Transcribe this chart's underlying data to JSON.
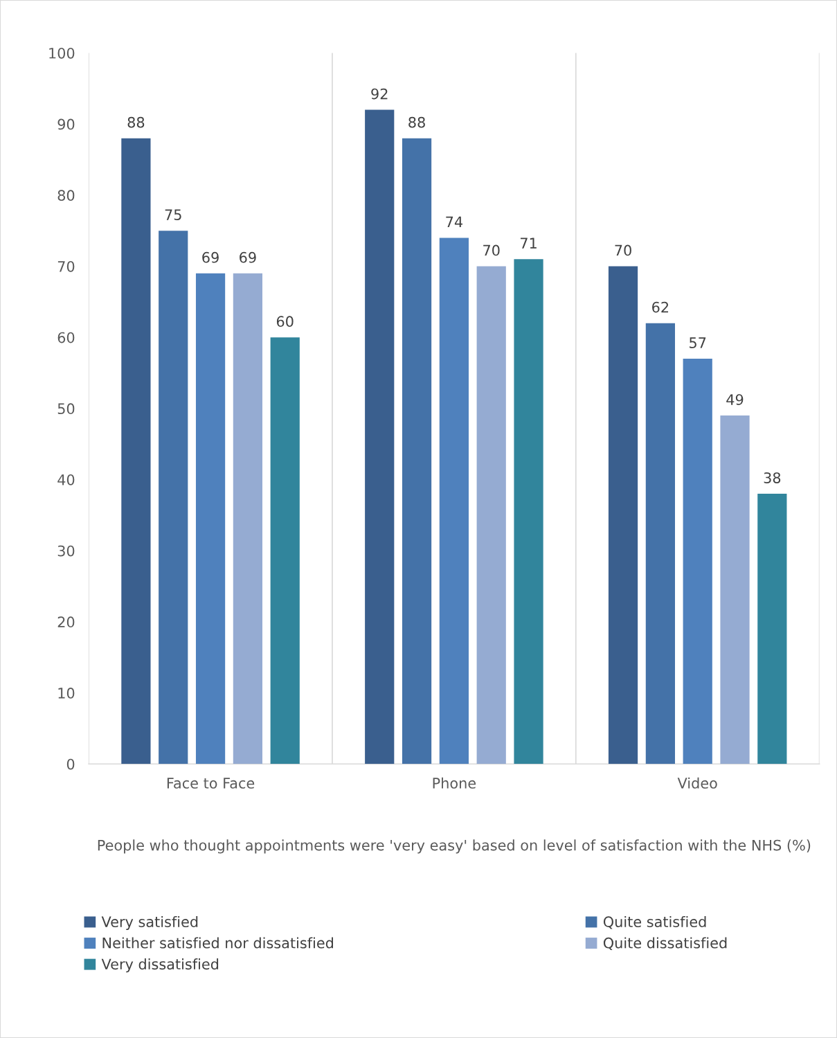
{
  "chart_data": {
    "type": "bar",
    "xlabel": "People who thought appointments were 'very easy' based on level of satisfaction with the NHS (%)",
    "categories": [
      "Face to Face",
      "Phone",
      "Video"
    ],
    "series": [
      {
        "name": "Very satisfied",
        "color": "#3a5f8e",
        "values": [
          88,
          92,
          70
        ]
      },
      {
        "name": "Quite satisfied",
        "color": "#4472a8",
        "values": [
          75,
          88,
          62
        ]
      },
      {
        "name": "Neither satisfied nor dissatisfied",
        "color": "#4f81bd",
        "values": [
          69,
          74,
          57
        ]
      },
      {
        "name": "Quite dissatisfied",
        "color": "#95abd2",
        "values": [
          69,
          70,
          49
        ]
      },
      {
        "name": "Very dissatisfied",
        "color": "#31859c",
        "values": [
          60,
          71,
          38
        ]
      }
    ],
    "ylim": [
      0,
      100
    ],
    "yticks": [
      0,
      10,
      20,
      30,
      40,
      50,
      60,
      70,
      80,
      90,
      100
    ],
    "grid": "x",
    "legend": "bottom",
    "data_labels": true
  }
}
